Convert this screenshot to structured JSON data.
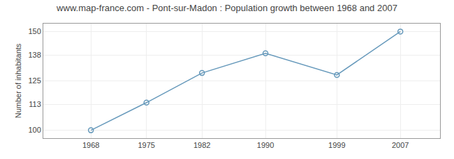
{
  "chart_data": {
    "type": "line",
    "title": "www.map-france.com - Pont-sur-Madon : Population growth between 1968 and 2007",
    "y_label": "Number of inhabitants",
    "x": [
      1968,
      1975,
      1982,
      1990,
      1999,
      2007
    ],
    "values": [
      100,
      114,
      129,
      139,
      128,
      150
    ],
    "color": "#6699bb",
    "marker": "circle-open",
    "xlim": [
      1962,
      2012
    ],
    "xticks": [
      1968,
      1975,
      1982,
      1990,
      1999,
      2007
    ],
    "ylim": [
      96,
      154
    ],
    "yticks": [
      100,
      113,
      125,
      138,
      150
    ],
    "grid": true
  }
}
